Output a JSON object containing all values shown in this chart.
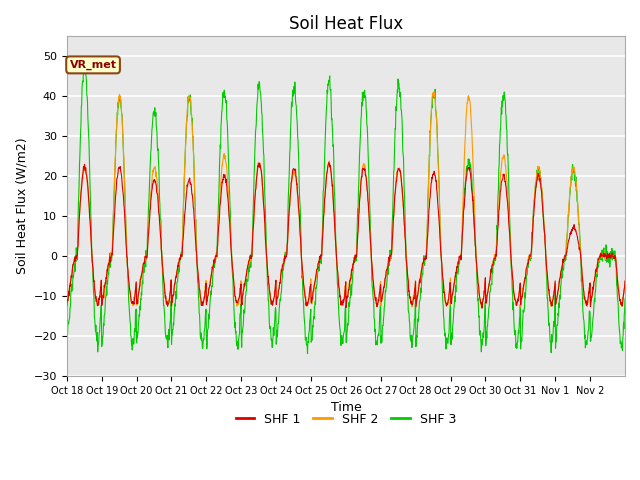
{
  "title": "Soil Heat Flux",
  "ylabel": "Soil Heat Flux (W/m2)",
  "xlabel": "Time",
  "ylim": [
    -30,
    55
  ],
  "yticks": [
    -30,
    -20,
    -10,
    0,
    10,
    20,
    30,
    40,
    50
  ],
  "xtick_labels": [
    "Oct 18",
    "Oct 19",
    "Oct 20",
    "Oct 21",
    "Oct 22",
    "Oct 23",
    "Oct 24",
    "Oct 25",
    "Oct 26",
    "Oct 27",
    "Oct 28",
    "Oct 29",
    "Oct 30",
    "Oct 31",
    "Nov 1",
    "Nov 2"
  ],
  "color_shf1": "#dd0000",
  "color_shf2": "#ff9900",
  "color_shf3": "#00cc00",
  "legend_labels": [
    "SHF 1",
    "SHF 2",
    "SHF 3"
  ],
  "annotation_text": "VR_met",
  "background_color": "#e8e8e8",
  "grid_color": "white",
  "title_fontsize": 12,
  "axis_label_fontsize": 9,
  "tick_fontsize": 8,
  "n_days": 16,
  "pts_per_day": 96,
  "day_peaks_shf1": [
    22,
    22,
    19,
    19,
    20,
    23,
    22,
    23,
    22,
    22,
    21,
    22,
    20,
    20,
    7,
    0
  ],
  "day_peaks_shf2": [
    22,
    40,
    22,
    40,
    25,
    23,
    21,
    23,
    23,
    22,
    41,
    40,
    25,
    22,
    22,
    0
  ],
  "day_peaks_shf3": [
    47,
    39,
    36,
    40,
    41,
    43,
    42,
    43,
    41,
    43,
    41,
    24,
    40,
    21,
    21,
    0
  ],
  "night_min_shf1": -12,
  "night_min_shf2": -12,
  "night_min_shf3": -22
}
